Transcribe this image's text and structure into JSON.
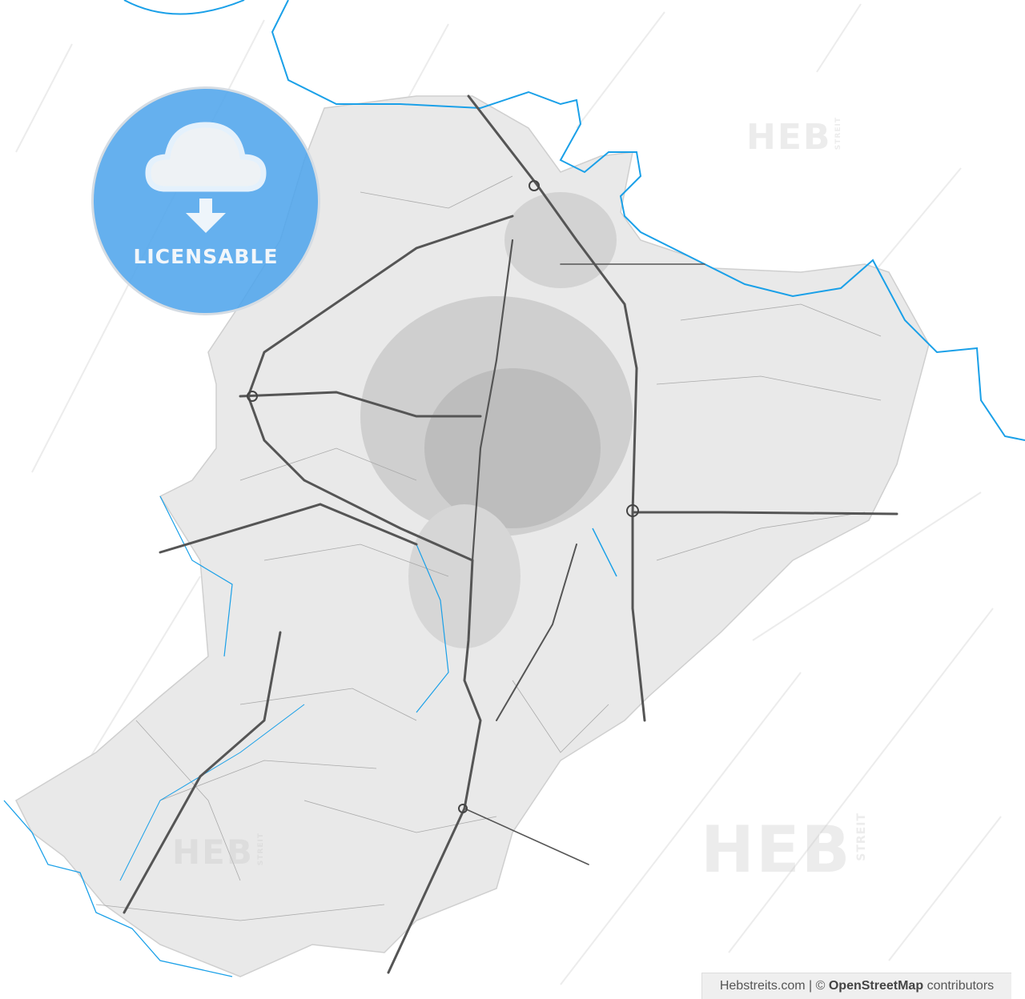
{
  "badge": {
    "label": "LICENSABLE",
    "icon": "cloud-download-icon",
    "color": "#5aa9ec"
  },
  "watermark": {
    "brand": "HEB",
    "sub": "STREIT"
  },
  "attribution": {
    "site": "Hebstreits.com",
    "separator": "|",
    "copyright": "©",
    "source": "OpenStreetMap",
    "suffix": "contributors"
  },
  "colors": {
    "land": "#e8e8e8",
    "water": "#1aa0e8",
    "roads": "#5a5a5a",
    "streets": "#9a9a9a"
  }
}
